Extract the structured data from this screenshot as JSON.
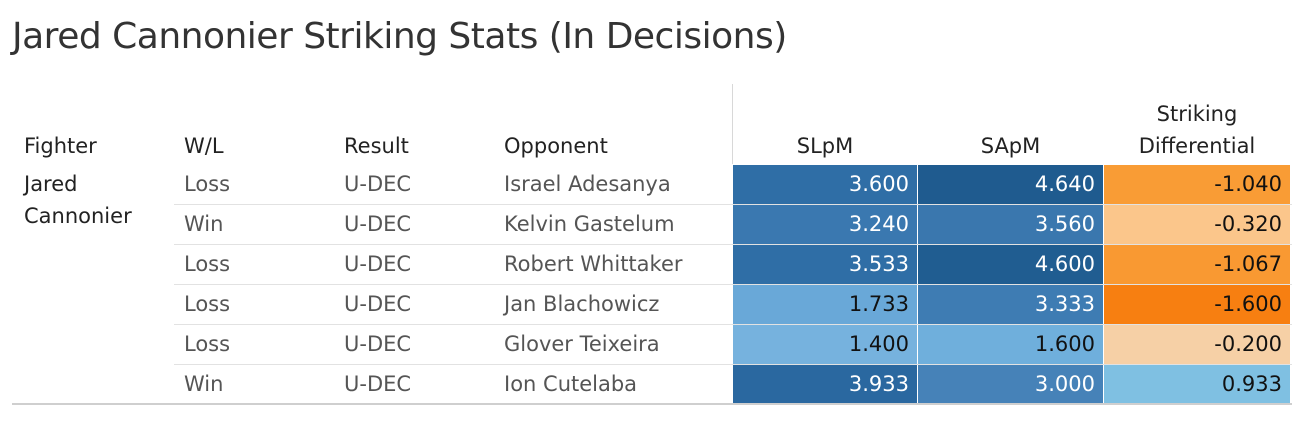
{
  "title": "Jared Cannonier Striking Stats (In Decisions)",
  "chart_data": {
    "type": "table",
    "columns": [
      "Fighter",
      "W/L",
      "Result",
      "Opponent",
      "SLpM",
      "SApM",
      "Striking Differential"
    ],
    "fighter": "Jared Cannonier",
    "rows": [
      {
        "wl": "Loss",
        "result": "U-DEC",
        "opponent": "Israel Adesanya",
        "slpm": "3.600",
        "sapm": "4.640",
        "diff": "-1.040",
        "slpm_color": "#2f6ea6",
        "sapm_color": "#1f5b8f",
        "diff_color": "#f99c35"
      },
      {
        "wl": "Win",
        "result": "U-DEC",
        "opponent": "Kelvin Gastelum",
        "slpm": "3.240",
        "sapm": "3.560",
        "diff": "-0.320",
        "slpm_color": "#3a78b0",
        "sapm_color": "#3a77ae",
        "diff_color": "#fbc68b"
      },
      {
        "wl": "Loss",
        "result": "U-DEC",
        "opponent": "Robert Whittaker",
        "slpm": "3.533",
        "sapm": "4.600",
        "diff": "-1.067",
        "slpm_color": "#2f6ea6",
        "sapm_color": "#205d91",
        "diff_color": "#f99932"
      },
      {
        "wl": "Loss",
        "result": "U-DEC",
        "opponent": "Jan Blachowicz",
        "slpm": "1.733",
        "sapm": "3.333",
        "diff": "-1.600",
        "slpm_color": "#69a8d8",
        "sapm_color": "#3e7cb3",
        "diff_color": "#f77f11"
      },
      {
        "wl": "Loss",
        "result": "U-DEC",
        "opponent": "Glover Teixeira",
        "slpm": "1.400",
        "sapm": "1.600",
        "diff": "-0.200",
        "slpm_color": "#76b2de",
        "sapm_color": "#6fafdc",
        "diff_color": "#f6d0a6"
      },
      {
        "wl": "Win",
        "result": "U-DEC",
        "opponent": "Ion Cutelaba",
        "slpm": "3.933",
        "sapm": "3.000",
        "diff": "0.933",
        "slpm_color": "#2a68a0",
        "sapm_color": "#4682b8",
        "diff_color": "#7fc0e2"
      }
    ]
  }
}
